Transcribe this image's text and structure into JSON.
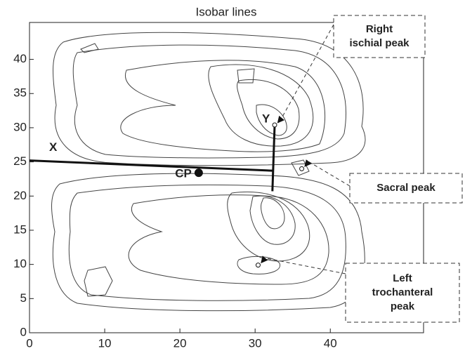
{
  "chart_data": {
    "type": "scatter",
    "title": "Isobar lines",
    "xlim": [
      0,
      52.4
    ],
    "ylim": [
      0,
      45.4
    ],
    "xticks": [
      0,
      10,
      20,
      30,
      40
    ],
    "yticks": [
      0,
      5,
      10,
      15,
      20,
      25,
      30,
      35,
      40
    ],
    "axis_lines": [
      {
        "name": "X",
        "x": [
          0,
          32.5
        ],
        "y": [
          25.2,
          23.7
        ]
      },
      {
        "name": "Y",
        "x": [
          32.6,
          32.3
        ],
        "y": [
          30.4,
          20.7
        ]
      }
    ],
    "center": {
      "name": "CP",
      "x": 22.5,
      "y": 23.4
    },
    "peaks": [
      {
        "lines": [
          "Right",
          "ischial peak"
        ],
        "x": 32.6,
        "y": 30.4
      },
      {
        "lines": [
          "Sacral peak"
        ],
        "x": 36.2,
        "y": 24.0
      },
      {
        "lines": [
          "Left",
          "trochanteral",
          "peak"
        ],
        "x": 30.4,
        "y": 9.9
      }
    ]
  }
}
